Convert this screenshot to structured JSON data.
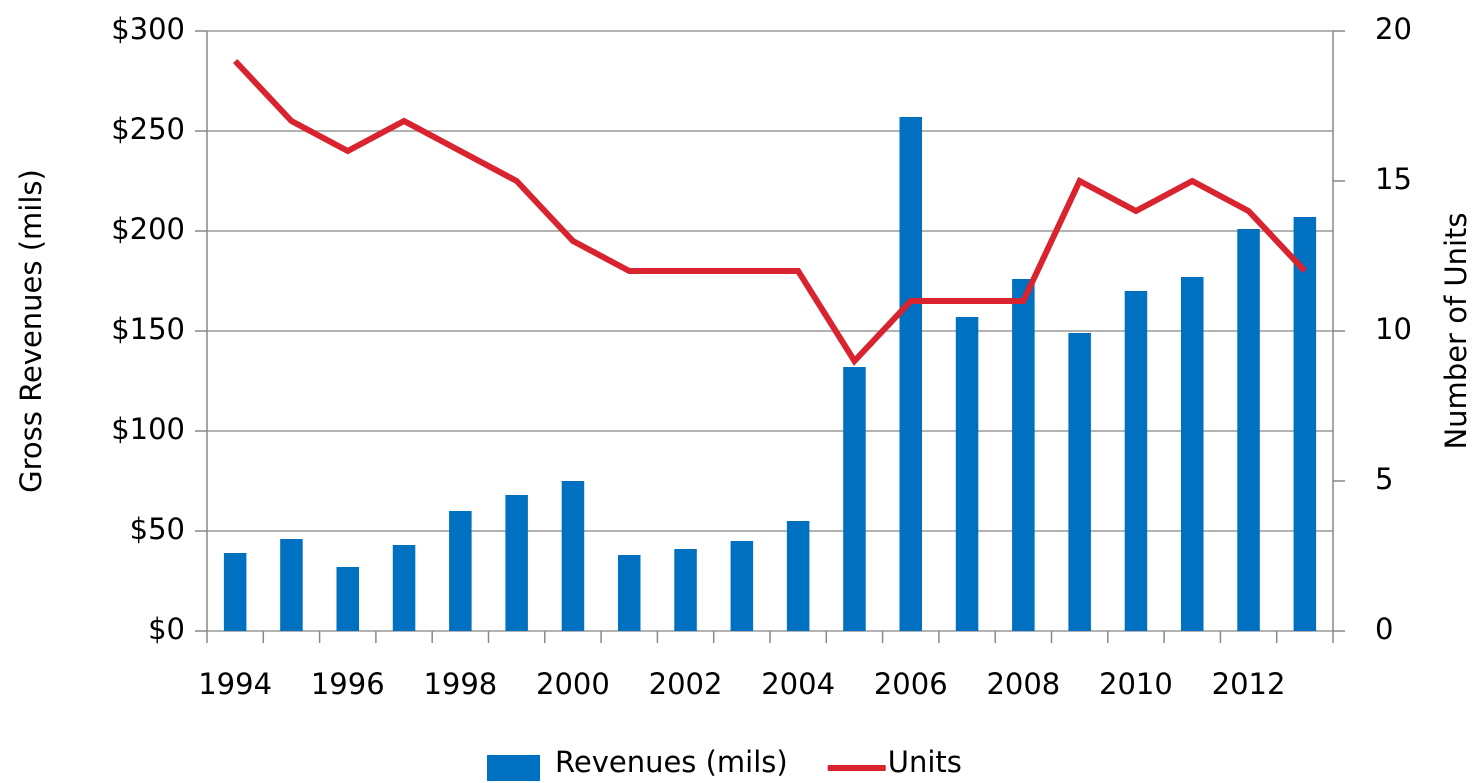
{
  "chart_data": {
    "type": "bar",
    "categories": [
      "1994",
      null,
      "1996",
      null,
      "1998",
      null,
      "2000",
      null,
      "2002",
      null,
      "2004",
      null,
      "2006",
      null,
      "2008",
      null,
      "2010",
      null,
      "2012",
      null
    ],
    "series": [
      {
        "name": "Revenues (mils)",
        "type": "bar",
        "color": "#0070c0",
        "values": [
          39,
          46,
          32,
          43,
          60,
          68,
          75,
          38,
          41,
          45,
          55,
          132,
          257,
          157,
          176,
          149,
          170,
          177,
          201,
          207
        ]
      },
      {
        "name": "Units",
        "type": "line",
        "axis": "y2",
        "color": "#d9232e",
        "values": [
          19,
          17,
          16,
          17,
          16,
          15,
          13,
          12,
          12,
          12,
          12,
          9,
          11,
          11,
          11,
          15,
          14,
          15,
          14,
          12
        ]
      }
    ],
    "ylabel": "Gross Revenues (mils)",
    "y2label": "Number of Units",
    "ylim": [
      0,
      300
    ],
    "yticks": [
      {
        "value": 0,
        "label": "$0"
      },
      {
        "value": 50,
        "label": "$50"
      },
      {
        "value": 100,
        "label": "$100"
      },
      {
        "value": 150,
        "label": "$150"
      },
      {
        "value": 200,
        "label": "$200"
      },
      {
        "value": 250,
        "label": "$250"
      },
      {
        "value": 300,
        "label": "$300"
      }
    ],
    "y2lim": [
      0,
      20
    ],
    "y2ticks": [
      0,
      5,
      10,
      15,
      20
    ],
    "grid": true,
    "legend": "bottom"
  }
}
